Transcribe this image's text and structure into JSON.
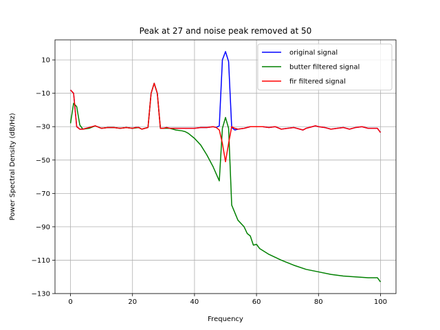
{
  "chart_data": {
    "type": "line",
    "title": "Peak at 27 and noise peak removed at 50",
    "xlabel": "Frequency",
    "ylabel": "Power Spectral Density (dB/Hz)",
    "xlim": [
      -5,
      105
    ],
    "ylim": [
      -130,
      22
    ],
    "xticks": [
      0,
      20,
      40,
      60,
      80,
      100
    ],
    "yticks": [
      -130,
      -110,
      -90,
      -70,
      -50,
      -30,
      -10,
      10
    ],
    "grid": true,
    "legend_position": "upper right",
    "series": [
      {
        "name": "original signal",
        "color": "#0000ff",
        "points": [
          [
            0,
            -8
          ],
          [
            1,
            -10
          ],
          [
            2,
            -30
          ],
          [
            3,
            -31.5
          ],
          [
            4,
            -31.5
          ],
          [
            6,
            -30.5
          ],
          [
            8,
            -29.5
          ],
          [
            10,
            -31
          ],
          [
            12,
            -30.5
          ],
          [
            14,
            -30.5
          ],
          [
            16,
            -31
          ],
          [
            18,
            -30.5
          ],
          [
            20,
            -31
          ],
          [
            21,
            -30.5
          ],
          [
            22,
            -30.5
          ],
          [
            23,
            -31.5
          ],
          [
            24,
            -31
          ],
          [
            25,
            -30.5
          ],
          [
            26,
            -10
          ],
          [
            27,
            -4
          ],
          [
            28,
            -10
          ],
          [
            29,
            -31
          ],
          [
            30,
            -31
          ],
          [
            31,
            -30.5
          ],
          [
            32,
            -31
          ],
          [
            34,
            -31
          ],
          [
            36,
            -31
          ],
          [
            38,
            -31
          ],
          [
            40,
            -31
          ],
          [
            42,
            -30.5
          ],
          [
            44,
            -30.5
          ],
          [
            46,
            -30
          ],
          [
            47,
            -30.5
          ],
          [
            48,
            -29.5
          ],
          [
            49,
            10
          ],
          [
            50,
            15
          ],
          [
            51,
            9
          ],
          [
            52,
            -30.5
          ],
          [
            53,
            -32
          ],
          [
            54,
            -31.5
          ],
          [
            56,
            -31
          ],
          [
            58,
            -30
          ],
          [
            60,
            -30
          ],
          [
            62,
            -30
          ],
          [
            64,
            -30.5
          ],
          [
            66,
            -30
          ],
          [
            68,
            -31.5
          ],
          [
            70,
            -31
          ],
          [
            72,
            -30.5
          ],
          [
            74,
            -31.5
          ],
          [
            75,
            -32
          ],
          [
            76,
            -31
          ],
          [
            78,
            -30
          ],
          [
            79,
            -29.5
          ],
          [
            80,
            -30
          ],
          [
            82,
            -30.5
          ],
          [
            84,
            -31.5
          ],
          [
            86,
            -31
          ],
          [
            88,
            -30.5
          ],
          [
            90,
            -31.5
          ],
          [
            92,
            -30.5
          ],
          [
            94,
            -30
          ],
          [
            96,
            -31
          ],
          [
            98,
            -31
          ],
          [
            99,
            -31
          ],
          [
            100,
            -33.5
          ]
        ]
      },
      {
        "name": "butter filtered signal",
        "color": "#008000",
        "points": [
          [
            0,
            -28
          ],
          [
            1,
            -16
          ],
          [
            2,
            -18
          ],
          [
            3,
            -29
          ],
          [
            4,
            -31.5
          ],
          [
            6,
            -31
          ],
          [
            8,
            -29.5
          ],
          [
            10,
            -31
          ],
          [
            12,
            -30.5
          ],
          [
            14,
            -30.5
          ],
          [
            16,
            -31
          ],
          [
            18,
            -30.5
          ],
          [
            20,
            -31
          ],
          [
            22,
            -30.5
          ],
          [
            23,
            -31.5
          ],
          [
            24,
            -31
          ],
          [
            25,
            -30.5
          ],
          [
            26,
            -10
          ],
          [
            27,
            -4
          ],
          [
            28,
            -10
          ],
          [
            29,
            -31
          ],
          [
            30,
            -31
          ],
          [
            32,
            -31
          ],
          [
            34,
            -32
          ],
          [
            36,
            -32.5
          ],
          [
            37,
            -33
          ],
          [
            38,
            -34
          ],
          [
            40,
            -37
          ],
          [
            42,
            -41
          ],
          [
            44,
            -47
          ],
          [
            46,
            -54
          ],
          [
            48,
            -62.5
          ],
          [
            49,
            -31
          ],
          [
            50,
            -24.5
          ],
          [
            51,
            -31
          ],
          [
            52,
            -77
          ],
          [
            54,
            -86
          ],
          [
            56,
            -90
          ],
          [
            57,
            -94
          ],
          [
            58,
            -95.5
          ],
          [
            59,
            -101
          ],
          [
            60,
            -100.5
          ],
          [
            61,
            -103
          ],
          [
            64,
            -106.5
          ],
          [
            68,
            -110
          ],
          [
            72,
            -113
          ],
          [
            76,
            -115.5
          ],
          [
            80,
            -117
          ],
          [
            84,
            -118.5
          ],
          [
            88,
            -119.5
          ],
          [
            92,
            -120
          ],
          [
            96,
            -120.5
          ],
          [
            99,
            -120.5
          ],
          [
            100,
            -123
          ]
        ]
      },
      {
        "name": "fir filtered signal",
        "color": "#ff0000",
        "points": [
          [
            0,
            -8
          ],
          [
            1,
            -10
          ],
          [
            2,
            -30
          ],
          [
            3,
            -31.5
          ],
          [
            4,
            -31.5
          ],
          [
            6,
            -30.5
          ],
          [
            8,
            -29.5
          ],
          [
            10,
            -31
          ],
          [
            12,
            -30.5
          ],
          [
            14,
            -30.5
          ],
          [
            16,
            -31
          ],
          [
            18,
            -30.5
          ],
          [
            20,
            -31
          ],
          [
            21,
            -30.5
          ],
          [
            22,
            -30.5
          ],
          [
            23,
            -31.5
          ],
          [
            24,
            -31
          ],
          [
            25,
            -30.5
          ],
          [
            26,
            -10
          ],
          [
            27,
            -4
          ],
          [
            28,
            -10
          ],
          [
            29,
            -31
          ],
          [
            30,
            -31
          ],
          [
            31,
            -30.5
          ],
          [
            32,
            -31
          ],
          [
            34,
            -31
          ],
          [
            36,
            -31
          ],
          [
            38,
            -31
          ],
          [
            40,
            -31
          ],
          [
            42,
            -30.5
          ],
          [
            44,
            -30.5
          ],
          [
            46,
            -30
          ],
          [
            47,
            -30.5
          ],
          [
            48,
            -32
          ],
          [
            49,
            -40
          ],
          [
            50,
            -51
          ],
          [
            51,
            -40
          ],
          [
            52,
            -30
          ],
          [
            53,
            -31
          ],
          [
            54,
            -31.5
          ],
          [
            56,
            -31
          ],
          [
            58,
            -30
          ],
          [
            60,
            -30
          ],
          [
            62,
            -30
          ],
          [
            64,
            -30.5
          ],
          [
            66,
            -30
          ],
          [
            68,
            -31.5
          ],
          [
            70,
            -31
          ],
          [
            72,
            -30.5
          ],
          [
            74,
            -31.5
          ],
          [
            75,
            -32
          ],
          [
            76,
            -31
          ],
          [
            78,
            -30
          ],
          [
            79,
            -29.5
          ],
          [
            80,
            -30
          ],
          [
            82,
            -30.5
          ],
          [
            84,
            -31.5
          ],
          [
            86,
            -31
          ],
          [
            88,
            -30.5
          ],
          [
            90,
            -31.5
          ],
          [
            92,
            -30.5
          ],
          [
            94,
            -30
          ],
          [
            96,
            -31
          ],
          [
            98,
            -31
          ],
          [
            99,
            -31
          ],
          [
            100,
            -33.5
          ]
        ]
      }
    ]
  }
}
